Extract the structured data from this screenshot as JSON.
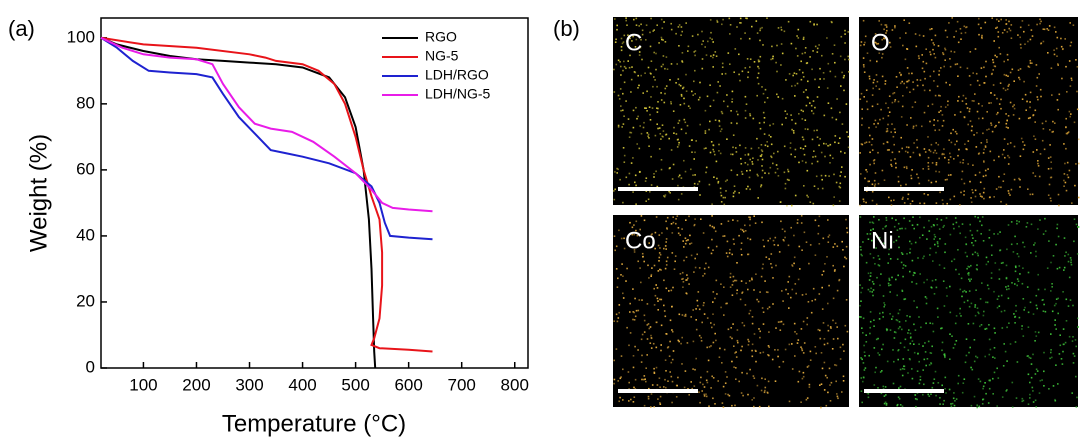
{
  "chart_data": {
    "type": "line",
    "panel_label": "(a)",
    "xlabel": "Temperature (°C)",
    "ylabel": "Weight (%)",
    "xlim": [
      20,
      825
    ],
    "ylim": [
      0,
      106
    ],
    "xticks": [
      100,
      200,
      300,
      400,
      500,
      600,
      700,
      800
    ],
    "yticks": [
      0,
      20,
      40,
      60,
      80,
      100
    ],
    "legend": "upper right",
    "series": [
      {
        "name": "RGO",
        "color": "#000000",
        "x": [
          20,
          50,
          100,
          150,
          200,
          250,
          300,
          350,
          400,
          450,
          480,
          500,
          515,
          525,
          530,
          533,
          535,
          537
        ],
        "values": [
          100,
          98,
          96,
          94.5,
          93.5,
          93,
          92.5,
          92,
          91,
          88,
          82,
          73,
          60,
          45,
          30,
          15,
          5,
          0
        ]
      },
      {
        "name": "NG-5",
        "color": "#e8141a",
        "x": [
          20,
          100,
          200,
          300,
          330,
          350,
          400,
          430,
          460,
          480,
          500,
          515,
          530,
          545,
          550,
          550,
          545,
          535,
          530,
          545,
          600,
          645
        ],
        "values": [
          100,
          98,
          97,
          95,
          94,
          93,
          92,
          90,
          86,
          80,
          70,
          60,
          52,
          45,
          35,
          25,
          15,
          9,
          7,
          6,
          5.5,
          5
        ]
      },
      {
        "name": "LDH/RGO",
        "color": "#1e22d0",
        "x": [
          20,
          50,
          80,
          110,
          150,
          200,
          230,
          250,
          280,
          310,
          340,
          370,
          400,
          450,
          500,
          530,
          545,
          555,
          565,
          600,
          645
        ],
        "values": [
          100,
          97,
          93,
          90,
          89.5,
          89,
          88,
          83,
          76,
          71,
          66,
          65,
          64,
          62,
          59,
          55,
          50,
          44,
          40,
          39.5,
          39
        ]
      },
      {
        "name": "LDH/NG-5",
        "color": "#e81ce8",
        "x": [
          20,
          60,
          100,
          150,
          200,
          230,
          250,
          280,
          310,
          340,
          380,
          420,
          460,
          500,
          530,
          550,
          570,
          600,
          645
        ],
        "values": [
          100,
          97,
          95,
          94,
          93.5,
          92,
          86,
          79,
          74,
          72.5,
          71.5,
          68.5,
          64,
          59,
          54,
          50,
          48.5,
          48,
          47.5
        ]
      }
    ]
  },
  "panel_b": {
    "label": "(b)",
    "maps": [
      {
        "label": "C",
        "color": "#d6c83a"
      },
      {
        "label": "O",
        "color": "#e0a838"
      },
      {
        "label": "Co",
        "color": "#e8b040"
      },
      {
        "label": "Ni",
        "color": "#3fc23a"
      }
    ]
  }
}
